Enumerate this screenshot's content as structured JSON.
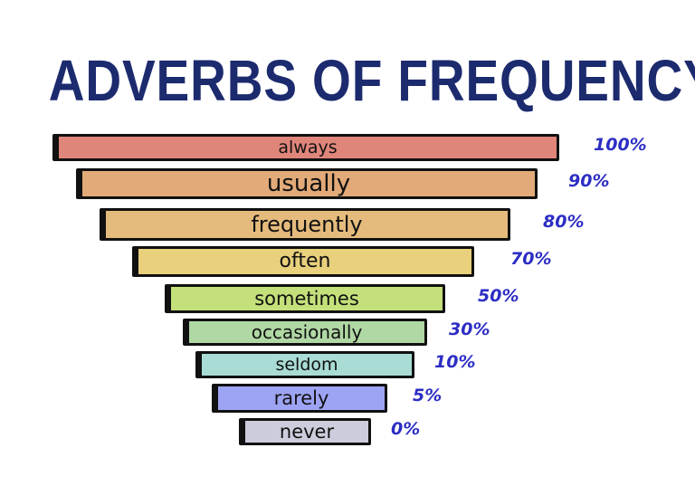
{
  "title": "ADVERBS OF FREQUENCY",
  "items": [
    {
      "label": "always",
      "percent": "100%",
      "color": "#e0857a"
    },
    {
      "label": "usually",
      "percent": "90%",
      "color": "#e2aa78"
    },
    {
      "label": "frequently",
      "percent": "80%",
      "color": "#e4bb7c"
    },
    {
      "label": "often",
      "percent": "70%",
      "color": "#e8d07c"
    },
    {
      "label": "sometimes",
      "percent": "50%",
      "color": "#c4e07a"
    },
    {
      "label": "occasionally",
      "percent": "30%",
      "color": "#b0d8a4"
    },
    {
      "label": "seldom",
      "percent": "10%",
      "color": "#a8dcd4"
    },
    {
      "label": "rarely",
      "percent": "5%",
      "color": "#9ea4f4"
    },
    {
      "label": "never",
      "percent": "0%",
      "color": "#ccccdc"
    }
  ],
  "colors": {
    "title": "#1c2a6e",
    "percent": "#2d2ec4"
  }
}
